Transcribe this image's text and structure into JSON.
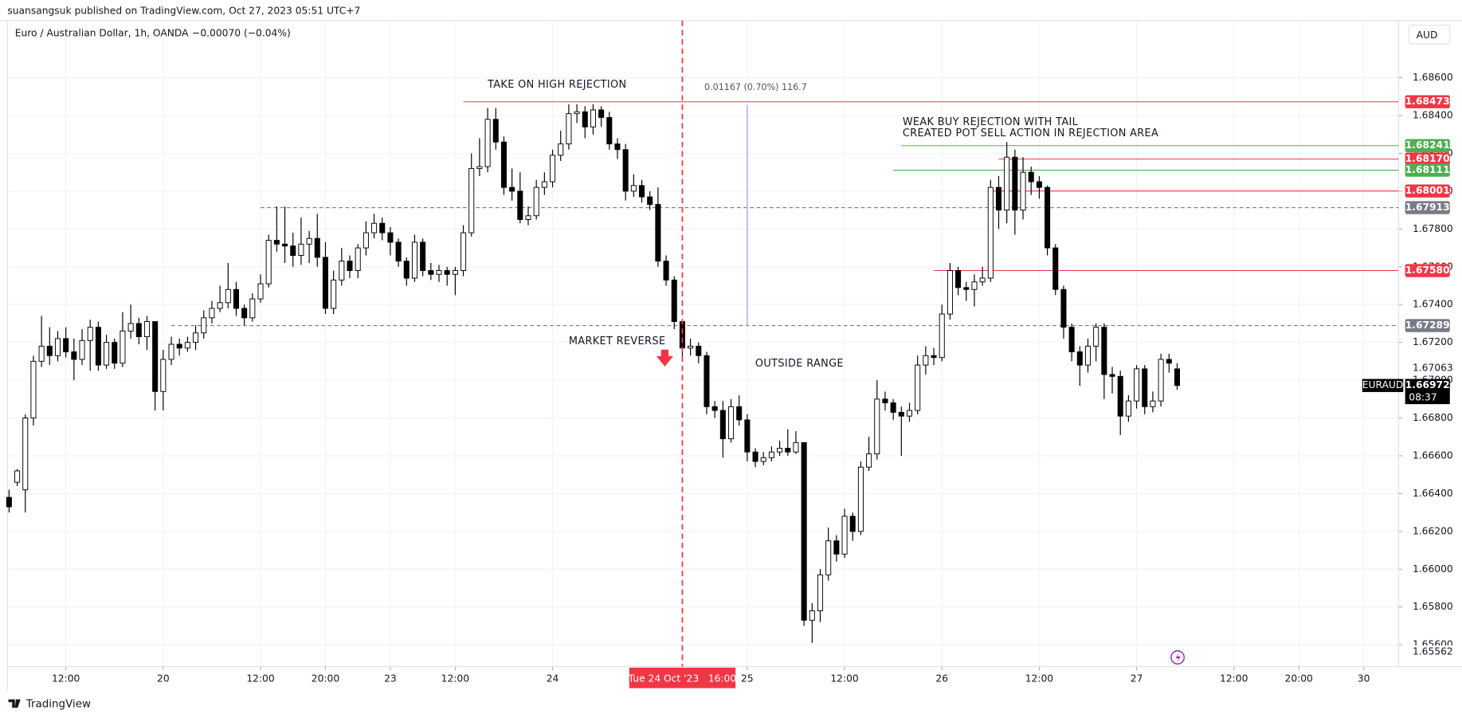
{
  "header": {
    "text": "suansangsuk published on TradingView.com, Oct 27, 2023 05:51 UTC+7"
  },
  "footer": {
    "brand": "TradingView"
  },
  "chart_data": {
    "type": "candlestick",
    "title": "Euro / Australian Dollar, 1h, OANDA",
    "change": "−0.00070 (−0.04%)",
    "currency": "AUD",
    "up_color": "#ffffff",
    "down_color": "#000000",
    "border_color": "#000000",
    "grid": true,
    "xlim": [
      -0.2,
      171.3
    ],
    "xticks": [
      {
        "value": 7,
        "label": "12:00"
      },
      {
        "value": 19,
        "label": "20"
      },
      {
        "value": 31,
        "label": "12:00"
      },
      {
        "value": 39,
        "label": "20:00"
      },
      {
        "value": 47,
        "label": "23"
      },
      {
        "value": 55,
        "label": "12:00"
      },
      {
        "value": 67,
        "label": "24"
      },
      {
        "value": 91,
        "label": "25"
      },
      {
        "value": 103,
        "label": "12:00"
      },
      {
        "value": 115,
        "label": "26"
      },
      {
        "value": 127,
        "label": "12:00"
      },
      {
        "value": 139,
        "label": "27"
      },
      {
        "value": 151,
        "label": "12:00"
      },
      {
        "value": 159,
        "label": "20:00"
      },
      {
        "value": 167,
        "label": "30"
      }
    ],
    "ylim": [
      1.65484,
      1.68903
    ],
    "yticks": [
      {
        "value": 1.686,
        "label": "1.68600"
      },
      {
        "value": 1.684,
        "label": "1.68400"
      },
      {
        "value": 1.682,
        "label": "1.68200"
      },
      {
        "value": 1.68,
        "label": "1.68000"
      },
      {
        "value": 1.678,
        "label": "1.67800"
      },
      {
        "value": 1.676,
        "label": "1.67600"
      },
      {
        "value": 1.674,
        "label": "1.67400"
      },
      {
        "value": 1.672,
        "label": "1.67200"
      },
      {
        "value": 1.67,
        "label": "1.67000"
      },
      {
        "value": 1.668,
        "label": "1.66800"
      },
      {
        "value": 1.666,
        "label": "1.66600"
      },
      {
        "value": 1.664,
        "label": "1.66400"
      },
      {
        "value": 1.662,
        "label": "1.66200"
      },
      {
        "value": 1.66,
        "label": "1.66000"
      },
      {
        "value": 1.658,
        "label": "1.65800"
      },
      {
        "value": 1.656,
        "label": "1.65600"
      }
    ],
    "open": [
      1.6638,
      1.6646,
      1.6642,
      1.668,
      1.671,
      1.6718,
      1.6713,
      1.6722,
      1.6715,
      1.6711,
      1.6721,
      1.6728,
      1.6708,
      1.672,
      1.6709,
      1.6726,
      1.673,
      1.6723,
      1.6731,
      1.6694,
      1.6711,
      1.6719,
      1.6717,
      1.672,
      1.6725,
      1.6733,
      1.6738,
      1.6741,
      1.6748,
      1.6738,
      1.6733,
      1.6743,
      1.6751,
      1.6774,
      1.6772,
      1.6771,
      1.6766,
      1.6772,
      1.6775,
      1.6765,
      1.6738,
      1.6753,
      1.6763,
      1.6758,
      1.677,
      1.6778,
      1.6783,
      1.6778,
      1.6773,
      1.6763,
      1.6754,
      1.6773,
      1.6758,
      1.6756,
      1.6758,
      1.6756,
      1.6758,
      1.6778,
      1.6812,
      1.6813,
      1.6838,
      1.6826,
      1.6802,
      1.68,
      1.6785,
      1.6787,
      1.6802,
      1.6805,
      1.6819,
      1.6825,
      1.6841,
      1.6842,
      1.6834,
      1.6843,
      1.6839,
      1.6825,
      1.6822,
      1.68,
      1.6803,
      1.6797,
      1.6793,
      1.6763,
      1.6753,
      1.6731,
      1.6717,
      1.6718,
      1.6713,
      1.6686,
      1.6684,
      1.6669,
      1.6686,
      1.6679,
      1.6662,
      1.6657,
      1.6659,
      1.6662,
      1.6664,
      1.6662,
      1.6667,
      1.6573,
      1.6578,
      1.6597,
      1.6615,
      1.6608,
      1.6628,
      1.662,
      1.6654,
      1.6661,
      1.669,
      1.6688,
      1.6683,
      1.6681,
      1.6684,
      1.6708,
      1.6713,
      1.6712,
      1.6735,
      1.6758,
      1.6749,
      1.6748,
      1.6752,
      1.6754,
      1.6802,
      1.679,
      1.6818,
      1.679,
      1.681,
      1.6805,
      1.6802,
      1.677,
      1.6748,
      1.6728,
      1.6715,
      1.6708,
      1.6718,
      1.6728,
      1.6703,
      1.6702,
      1.6681,
      1.6689,
      1.6706,
      1.6686,
      1.6689,
      1.6711,
      1.6706
    ],
    "high": [
      1.6642,
      1.6653,
      1.6682,
      1.6713,
      1.6734,
      1.6728,
      1.6726,
      1.6728,
      1.6722,
      1.6727,
      1.6732,
      1.6731,
      1.6724,
      1.6722,
      1.6736,
      1.674,
      1.6733,
      1.6734,
      1.6731,
      1.6716,
      1.6723,
      1.6722,
      1.6723,
      1.6729,
      1.6737,
      1.6742,
      1.675,
      1.6762,
      1.6752,
      1.674,
      1.6746,
      1.6756,
      1.6777,
      1.6792,
      1.6792,
      1.6778,
      1.6786,
      1.6779,
      1.6788,
      1.6773,
      1.6758,
      1.677,
      1.6766,
      1.6772,
      1.6784,
      1.6788,
      1.6786,
      1.6781,
      1.6775,
      1.6765,
      1.6777,
      1.6775,
      1.6762,
      1.6761,
      1.676,
      1.676,
      1.6782,
      1.682,
      1.6828,
      1.6844,
      1.6844,
      1.6829,
      1.6812,
      1.681,
      1.6792,
      1.6806,
      1.681,
      1.6822,
      1.6832,
      1.6846,
      1.6846,
      1.6845,
      1.6846,
      1.6845,
      1.6842,
      1.6828,
      1.6825,
      1.6809,
      1.6806,
      1.68,
      1.6802,
      1.6766,
      1.6755,
      1.6732,
      1.6722,
      1.672,
      1.6715,
      1.6689,
      1.6689,
      1.669,
      1.6692,
      1.6682,
      1.6664,
      1.6662,
      1.6665,
      1.6668,
      1.6674,
      1.6673,
      1.6667,
      1.6582,
      1.66,
      1.6622,
      1.6618,
      1.6632,
      1.663,
      1.6657,
      1.667,
      1.67,
      1.6694,
      1.669,
      1.6686,
      1.6688,
      1.6713,
      1.6718,
      1.6717,
      1.674,
      1.6762,
      1.676,
      1.6752,
      1.6756,
      1.676,
      1.6806,
      1.6808,
      1.6826,
      1.6822,
      1.6818,
      1.6813,
      1.6808,
      1.6803,
      1.6772,
      1.675,
      1.673,
      1.6718,
      1.6722,
      1.673,
      1.673,
      1.6707,
      1.6705,
      1.6692,
      1.6708,
      1.6708,
      1.6694,
      1.6714,
      1.6714,
      1.6709
    ],
    "low": [
      1.663,
      1.6644,
      1.663,
      1.6676,
      1.6707,
      1.6708,
      1.671,
      1.6712,
      1.67,
      1.6708,
      1.6705,
      1.6705,
      1.6706,
      1.6706,
      1.6707,
      1.6722,
      1.6719,
      1.6716,
      1.6684,
      1.6684,
      1.6708,
      1.6713,
      1.6715,
      1.6716,
      1.6722,
      1.673,
      1.6736,
      1.6738,
      1.6734,
      1.6729,
      1.6731,
      1.6741,
      1.6749,
      1.6768,
      1.6762,
      1.676,
      1.6761,
      1.6762,
      1.676,
      1.6735,
      1.6735,
      1.675,
      1.6754,
      1.6754,
      1.6766,
      1.6775,
      1.6774,
      1.6766,
      1.676,
      1.675,
      1.6752,
      1.6755,
      1.6753,
      1.6752,
      1.675,
      1.6745,
      1.6755,
      1.6776,
      1.6808,
      1.681,
      1.6822,
      1.6798,
      1.6795,
      1.6783,
      1.6782,
      1.6785,
      1.6798,
      1.6802,
      1.6816,
      1.6822,
      1.6836,
      1.6828,
      1.683,
      1.6834,
      1.6822,
      1.6817,
      1.6795,
      1.6797,
      1.6794,
      1.679,
      1.676,
      1.675,
      1.6727,
      1.6712,
      1.6713,
      1.6709,
      1.6682,
      1.668,
      1.6659,
      1.6667,
      1.6676,
      1.6657,
      1.6654,
      1.6655,
      1.6657,
      1.666,
      1.666,
      1.6661,
      1.657,
      1.6561,
      1.6572,
      1.6594,
      1.6604,
      1.6606,
      1.6615,
      1.6618,
      1.6652,
      1.6658,
      1.6684,
      1.6679,
      1.666,
      1.6678,
      1.6682,
      1.6703,
      1.6708,
      1.671,
      1.6732,
      1.6745,
      1.6742,
      1.6739,
      1.675,
      1.6752,
      1.678,
      1.6783,
      1.6777,
      1.6785,
      1.6798,
      1.6796,
      1.6766,
      1.6745,
      1.6722,
      1.671,
      1.6697,
      1.6704,
      1.671,
      1.669,
      1.6693,
      1.6671,
      1.6678,
      1.6685,
      1.6682,
      1.6683,
      1.6686,
      1.6704,
      1.6695
    ],
    "close": [
      1.6633,
      1.6652,
      1.668,
      1.671,
      1.6718,
      1.6713,
      1.6722,
      1.6715,
      1.6711,
      1.6721,
      1.6728,
      1.6708,
      1.672,
      1.6709,
      1.6726,
      1.673,
      1.6723,
      1.6731,
      1.6694,
      1.6711,
      1.6719,
      1.6717,
      1.672,
      1.6725,
      1.6733,
      1.6738,
      1.6741,
      1.6748,
      1.6738,
      1.6733,
      1.6743,
      1.6751,
      1.6774,
      1.6772,
      1.6771,
      1.6766,
      1.6772,
      1.6775,
      1.6765,
      1.6738,
      1.6753,
      1.6763,
      1.6758,
      1.677,
      1.6778,
      1.6783,
      1.6778,
      1.6773,
      1.6763,
      1.6754,
      1.6773,
      1.6758,
      1.6756,
      1.6758,
      1.6756,
      1.6758,
      1.6778,
      1.6812,
      1.6813,
      1.6838,
      1.6826,
      1.6802,
      1.68,
      1.6785,
      1.6787,
      1.6802,
      1.6805,
      1.6819,
      1.6825,
      1.6841,
      1.6842,
      1.6834,
      1.6843,
      1.6839,
      1.6825,
      1.6822,
      1.68,
      1.6803,
      1.6797,
      1.6793,
      1.6763,
      1.6753,
      1.6731,
      1.6717,
      1.6718,
      1.6713,
      1.6686,
      1.6684,
      1.6669,
      1.6686,
      1.6679,
      1.6662,
      1.6657,
      1.6659,
      1.6662,
      1.6664,
      1.6662,
      1.6667,
      1.6573,
      1.6578,
      1.6597,
      1.6615,
      1.6608,
      1.6628,
      1.662,
      1.6654,
      1.6661,
      1.669,
      1.6688,
      1.6683,
      1.6681,
      1.6684,
      1.6708,
      1.6713,
      1.6712,
      1.6735,
      1.6758,
      1.6749,
      1.6748,
      1.6752,
      1.6754,
      1.6802,
      1.679,
      1.6818,
      1.679,
      1.681,
      1.6805,
      1.6802,
      1.677,
      1.6748,
      1.6728,
      1.6715,
      1.6708,
      1.6718,
      1.6728,
      1.6703,
      1.6702,
      1.6681,
      1.6689,
      1.6706,
      1.6686,
      1.6689,
      1.6711,
      1.6709,
      1.66972
    ],
    "levels": [
      {
        "value": 1.68473,
        "label": "1.68473",
        "color": "#f23645",
        "style": "solid",
        "x_start": 56
      },
      {
        "value": 1.68241,
        "label": "1.68241",
        "color": "#4caf50",
        "style": "solid",
        "x_start": 110
      },
      {
        "value": 1.6817,
        "label": "1.68170",
        "color": "#f23645",
        "style": "solid",
        "x_start": 122
      },
      {
        "value": 1.68111,
        "label": "1.68111",
        "color": "#4caf50",
        "style": "solid",
        "x_start": 109
      },
      {
        "value": 1.68001,
        "label": "1.68001",
        "color": "#f23645",
        "style": "solid",
        "x_start": 121
      },
      {
        "value": 1.67913,
        "label": "1.67913",
        "color": "#787b86",
        "style": "dashed",
        "x_start": 31
      },
      {
        "value": 1.6758,
        "label": "1.67580",
        "color": "#f23645",
        "style": "solid",
        "x_start": 114
      },
      {
        "value": 1.67289,
        "label": "1.67289",
        "color": "#787b86",
        "style": "dashed",
        "x_start": 20
      }
    ],
    "price_labels": [
      {
        "value": 1.67063,
        "label": "1.67063"
      },
      {
        "value": 1.65562,
        "label": "1.65562"
      }
    ],
    "last_price": {
      "value": 1.66972,
      "label": "1.66972",
      "symbol": "EURAUD",
      "countdown": "08:37"
    },
    "measure": {
      "label": "0.01167 (0.70%) 116.7",
      "x": 91,
      "from": 1.67289,
      "to": 1.68456
    },
    "crosshair": {
      "x": 83,
      "label": "Tue 24 Oct '23   16:00"
    },
    "annotations": [
      "TAKE ON HIGH REJECTION",
      "WEAK BUY REJECTION WITH TAIL",
      "CREATED POT SELL ACTION IN REJECTION AREA",
      "MARKET REVERSE",
      "OUTSIDE RANGE"
    ]
  }
}
